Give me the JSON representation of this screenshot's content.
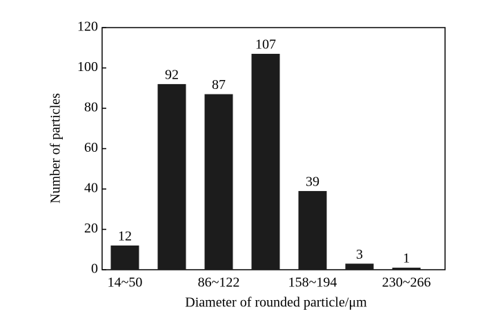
{
  "chart_data": {
    "type": "bar",
    "x_label": "Diameter of rounded particle/μm",
    "y_label": "Number of particles",
    "categories": [
      "14~50",
      null,
      "86~122",
      null,
      "158~194",
      null,
      "230~266"
    ],
    "values": [
      12,
      92,
      87,
      107,
      39,
      3,
      1
    ],
    "color": "#1c1c1c",
    "ylim": [
      0,
      120
    ],
    "yticks": [
      0,
      20,
      40,
      60,
      80,
      100,
      120
    ]
  }
}
